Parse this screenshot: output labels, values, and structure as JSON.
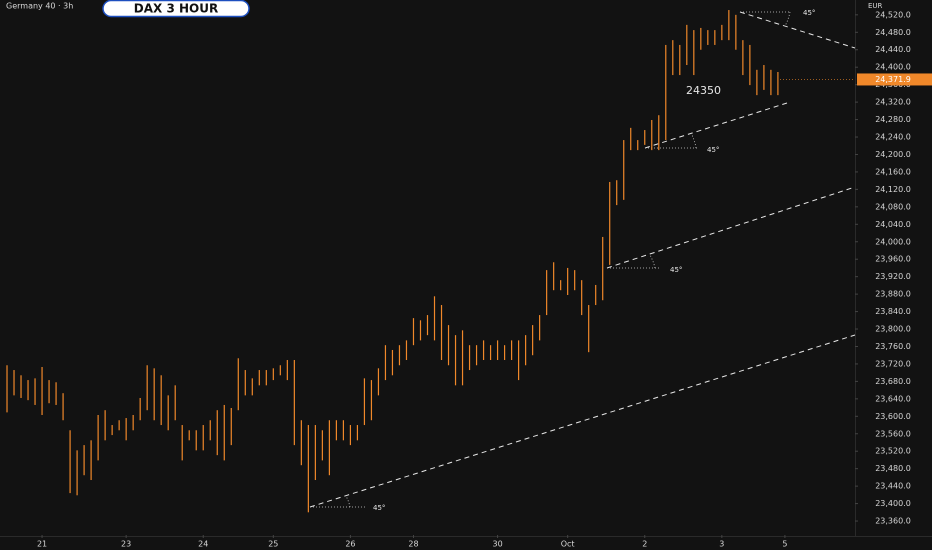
{
  "chart_data": {
    "type": "ohlc",
    "title": "Germany 40 · 3h",
    "badge": "DAX 3 HOUR",
    "currency": "EUR",
    "color": "#f0882a",
    "x": [
      0,
      1,
      2,
      3,
      4,
      5,
      6,
      7,
      8,
      9,
      10,
      11,
      12,
      13,
      14,
      15,
      16,
      17,
      18,
      19,
      20,
      21,
      22,
      23,
      24,
      25,
      26,
      27,
      28,
      29,
      30,
      31,
      32,
      33,
      34,
      35,
      36,
      37,
      38,
      39,
      40,
      41,
      42,
      43,
      44,
      45,
      46,
      47,
      48,
      49,
      50,
      51,
      52,
      53,
      54,
      55,
      56,
      57,
      58,
      59,
      60,
      61,
      62,
      63,
      64,
      65,
      66,
      67,
      68,
      69,
      70,
      71,
      72,
      73,
      74,
      75,
      76,
      77,
      78,
      79,
      80,
      81,
      82,
      83,
      84,
      85,
      86,
      87,
      88,
      89,
      90,
      91,
      92,
      93,
      94,
      95,
      96,
      97,
      98,
      99,
      100,
      101,
      102,
      103,
      104,
      105,
      106,
      107,
      108,
      109,
      110
    ],
    "high": [
      23717,
      23706,
      23694,
      23683,
      23687,
      23713,
      23683,
      23678,
      23653,
      23568,
      23522,
      23534,
      23545,
      23603,
      23614,
      23580,
      23591,
      23596,
      23603,
      23642,
      23717,
      23710,
      23694,
      23648,
      23671,
      23580,
      23568,
      23568,
      23580,
      23591,
      23614,
      23626,
      23619,
      23733,
      23706,
      23687,
      23706,
      23706,
      23710,
      23717,
      23729,
      23729,
      23591,
      23580,
      23580,
      23568,
      23591,
      23591,
      23591,
      23580,
      23580,
      23687,
      23683,
      23710,
      23763,
      23752,
      23763,
      23774,
      23825,
      23820,
      23832,
      23875,
      23855,
      23809,
      23786,
      23797,
      23763,
      23763,
      23774,
      23763,
      23774,
      23763,
      23774,
      23774,
      23786,
      23809,
      23832,
      23935,
      23953,
      23912,
      23940,
      23935,
      23912,
      23855,
      23901,
      24011,
      24137,
      24141,
      24233,
      24261,
      24233,
      24256,
      24279,
      24290,
      24451,
      24462,
      24451,
      24497,
      24485,
      24490,
      24485,
      24485,
      24497,
      24531,
      24520,
      24462,
      24451,
      24394,
      24405,
      24394,
      24389
    ],
    "low": [
      23609,
      23648,
      23642,
      23637,
      23626,
      23603,
      23630,
      23626,
      23591,
      23424,
      23419,
      23465,
      23454,
      23499,
      23545,
      23557,
      23568,
      23545,
      23568,
      23591,
      23614,
      23591,
      23580,
      23568,
      23591,
      23499,
      23545,
      23522,
      23522,
      23545,
      23511,
      23499,
      23534,
      23614,
      23648,
      23648,
      23671,
      23671,
      23683,
      23694,
      23683,
      23534,
      23488,
      23380,
      23454,
      23499,
      23465,
      23545,
      23545,
      23534,
      23545,
      23580,
      23591,
      23648,
      23683,
      23694,
      23717,
      23729,
      23763,
      23774,
      23786,
      23774,
      23729,
      23717,
      23671,
      23671,
      23706,
      23717,
      23729,
      23729,
      23729,
      23729,
      23729,
      23683,
      23717,
      23740,
      23774,
      23832,
      23889,
      23889,
      23878,
      23889,
      23832,
      23747,
      23855,
      23866,
      23947,
      24084,
      24096,
      24210,
      24210,
      24222,
      24210,
      24210,
      24233,
      24382,
      24382,
      24405,
      24382,
      24440,
      24451,
      24451,
      24462,
      24462,
      24440,
      24382,
      24359,
      24336,
      24348,
      24336,
      24336
    ],
    "xlim": [
      -1,
      121
    ],
    "xticks": [
      {
        "value": 5,
        "label": "21"
      },
      {
        "value": 17,
        "label": "23"
      },
      {
        "value": 28,
        "label": "24"
      },
      {
        "value": 38,
        "label": "25"
      },
      {
        "value": 49,
        "label": "26"
      },
      {
        "value": 58,
        "label": "28"
      },
      {
        "value": 70,
        "label": "30"
      },
      {
        "value": 80,
        "label": "Oct"
      },
      {
        "value": 91,
        "label": "2"
      },
      {
        "value": 102,
        "label": "3"
      },
      {
        "value": 111,
        "label": "5"
      }
    ],
    "ylim": [
      23328,
      24554
    ],
    "yticks": [
      {
        "value": 23360,
        "label": "23,360.0"
      },
      {
        "value": 23400,
        "label": "23,400.0"
      },
      {
        "value": 23440,
        "label": "23,440.0"
      },
      {
        "value": 23480,
        "label": "23,480.0"
      },
      {
        "value": 23520,
        "label": "23,520.0"
      },
      {
        "value": 23560,
        "label": "23,560.0"
      },
      {
        "value": 23600,
        "label": "23,600.0"
      },
      {
        "value": 23640,
        "label": "23,640.0"
      },
      {
        "value": 23680,
        "label": "23,680.0"
      },
      {
        "value": 23720,
        "label": "23,720.0"
      },
      {
        "value": 23760,
        "label": "23,760.0"
      },
      {
        "value": 23800,
        "label": "23,800.0"
      },
      {
        "value": 23840,
        "label": "23,840.0"
      },
      {
        "value": 23880,
        "label": "23,880.0"
      },
      {
        "value": 23920,
        "label": "23,920.0"
      },
      {
        "value": 23960,
        "label": "23,960.0"
      },
      {
        "value": 24000,
        "label": "24,000.0"
      },
      {
        "value": 24040,
        "label": "24,040.0"
      },
      {
        "value": 24080,
        "label": "24,080.0"
      },
      {
        "value": 24120,
        "label": "24,120.0"
      },
      {
        "value": 24160,
        "label": "24,160.0"
      },
      {
        "value": 24200,
        "label": "24,200.0"
      },
      {
        "value": 24240,
        "label": "24,240.0"
      },
      {
        "value": 24280,
        "label": "24,280.0"
      },
      {
        "value": 24320,
        "label": "24,320.0"
      },
      {
        "value": 24360,
        "label": "24,360.0"
      },
      {
        "value": 24400,
        "label": "24,400.0"
      },
      {
        "value": 24440,
        "label": "24,440.0"
      },
      {
        "value": 24480,
        "label": "24,480.0"
      },
      {
        "value": 24520,
        "label": "24,520.0"
      }
    ],
    "last_price": {
      "value": 24371.9,
      "label": "24,371.9"
    },
    "annotations": [
      "45°",
      "45°",
      "45°",
      "45°",
      "24350"
    ]
  }
}
